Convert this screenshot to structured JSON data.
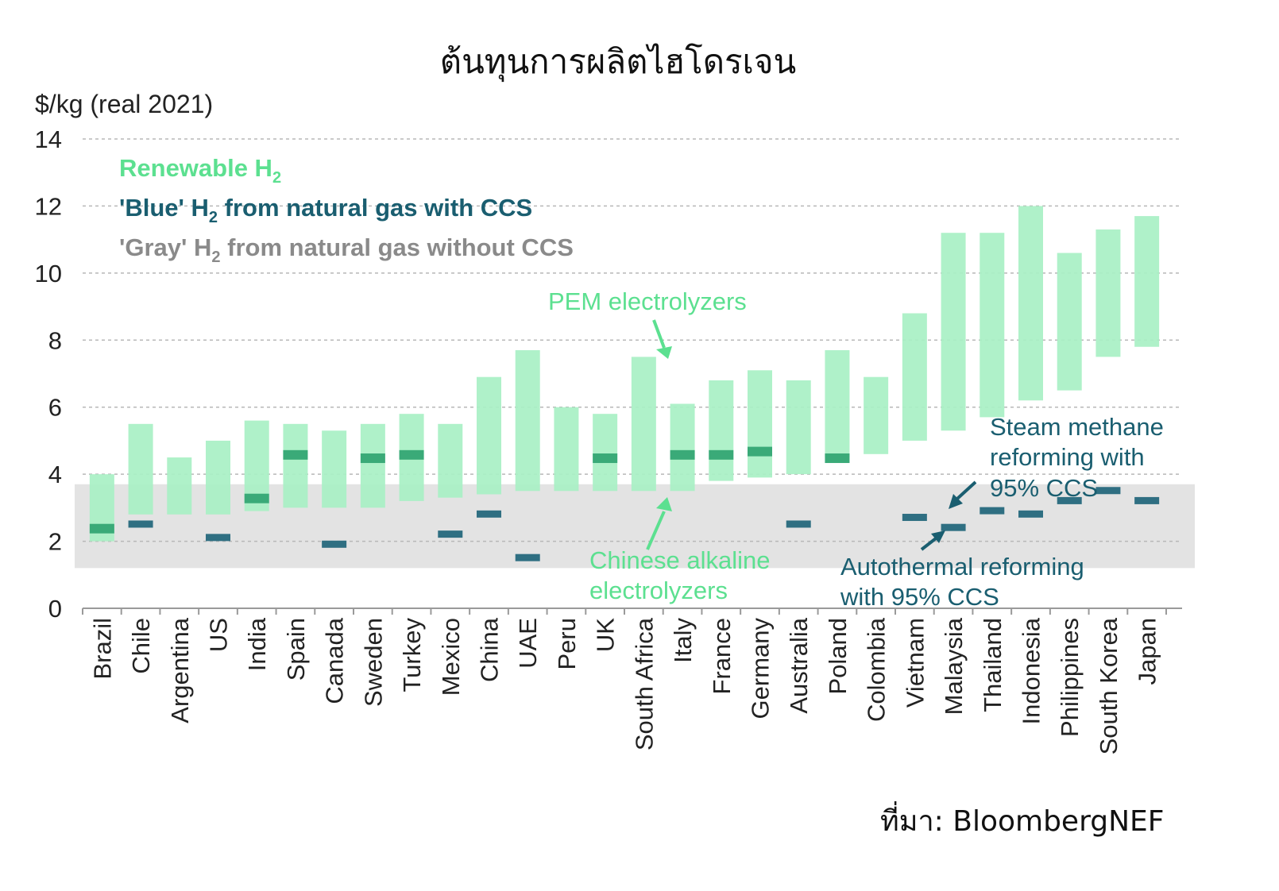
{
  "chart_data": {
    "type": "bar",
    "title": "ต้นทุนการผลิตไฮโดรเจน",
    "ylabel": "$/kg (real 2021)",
    "ylim": [
      0,
      14
    ],
    "yticks": [
      "0",
      "2",
      "4",
      "6",
      "8",
      "10",
      "12",
      "14"
    ],
    "grid": true,
    "categories": [
      "Brazil",
      "Chile",
      "Argentina",
      "US",
      "India",
      "Spain",
      "Canada",
      "Sweden",
      "Turkey",
      "Mexico",
      "China",
      "UAE",
      "Peru",
      "UK",
      "South Africa",
      "Italy",
      "France",
      "Germany",
      "Australia",
      "Poland",
      "Colombia",
      "Vietnam",
      "Malaysia",
      "Thailand",
      "Indonesia",
      "Philippines",
      "South Korea",
      "Japan"
    ],
    "gray_band": [
      1.2,
      3.7
    ],
    "renewable_range": [
      [
        2.0,
        4.0
      ],
      [
        2.8,
        5.5
      ],
      [
        2.8,
        4.5
      ],
      [
        2.8,
        5.0
      ],
      [
        2.9,
        5.6
      ],
      [
        3.0,
        5.5
      ],
      [
        3.0,
        5.3
      ],
      [
        3.0,
        5.5
      ],
      [
        3.2,
        5.8
      ],
      [
        3.3,
        5.5
      ],
      [
        3.4,
        6.9
      ],
      [
        3.5,
        7.7
      ],
      [
        3.5,
        6.0
      ],
      [
        3.5,
        5.8
      ],
      [
        3.5,
        7.5
      ],
      [
        3.5,
        6.1
      ],
      [
        3.8,
        6.8
      ],
      [
        3.9,
        7.1
      ],
      [
        4.0,
        6.8
      ],
      [
        4.5,
        7.7
      ],
      [
        4.6,
        6.9
      ],
      [
        5.0,
        8.8
      ],
      [
        5.3,
        11.2
      ],
      [
        5.7,
        11.2
      ],
      [
        6.2,
        12.0
      ],
      [
        6.5,
        10.6
      ],
      [
        7.5,
        11.3
      ],
      [
        7.8,
        11.7
      ]
    ],
    "blue_h2": [
      2.4,
      2.5,
      null,
      2.1,
      3.3,
      4.6,
      1.9,
      4.5,
      4.6,
      2.2,
      2.8,
      1.5,
      null,
      4.5,
      null,
      4.6,
      4.6,
      4.7,
      2.5,
      4.5,
      null,
      2.7,
      2.4,
      2.9,
      2.8,
      3.2,
      3.5,
      3.2
    ],
    "legend": {
      "renewable": "Renewable H",
      "renewable_sub": "2",
      "blue_pre": "'Blue' H",
      "blue_sub": "2",
      "blue_post": " from natural gas with CCS",
      "gray_pre": "'Gray' H",
      "gray_sub": "2",
      "gray_post": " from natural gas without CCS"
    },
    "annotations": {
      "pem": "PEM electrolyzers",
      "alkaline_1": "Chinese alkaline",
      "alkaline_2": "electrolyzers",
      "smr_1": "Steam methane",
      "smr_2": "reforming with",
      "smr_3": "95% CCS",
      "atr_1": "Autothermal reforming",
      "atr_2": "with  95% CCS"
    },
    "colors": {
      "renewable": "#a8f0c4",
      "renewable_text": "#5ce090",
      "blue": "#2f6f82",
      "blue_text": "#1a5e70",
      "blue_in_green": "#3aaa78",
      "gray_band": "#e3e3e3",
      "gray_text": "#8a8a8a",
      "grid": "#b8b8b8"
    },
    "source": "ที่มา:  BloombergNEF"
  }
}
